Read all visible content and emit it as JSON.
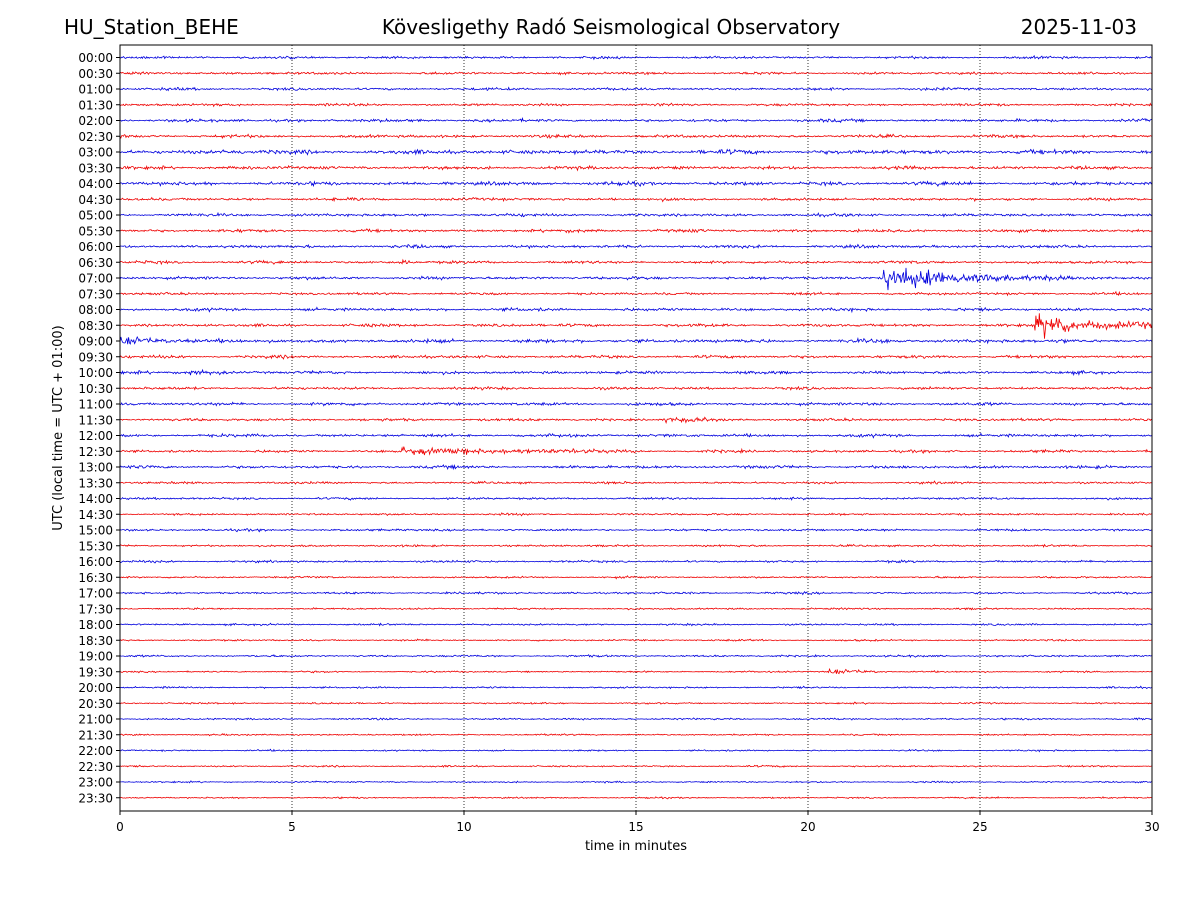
{
  "header": {
    "station": "HU_Station_BEHE",
    "observatory": "Kövesligethy Radó Seismological Observatory",
    "date": "2025-11-03"
  },
  "colors": {
    "even_row": "#0000dd",
    "odd_row": "#ee0000",
    "grid": "#000000",
    "axis": "#000000"
  },
  "chart_data": {
    "type": "line",
    "title": "Kövesligethy Radó Seismological Observatory",
    "xlabel": "time in minutes",
    "ylabel": "UTC (local time = UTC + 01:00)",
    "xlim": [
      0,
      30
    ],
    "x_ticks": [
      "0",
      "5",
      "10",
      "15",
      "20",
      "25",
      "30"
    ],
    "grid": "vertical dotted at x ticks",
    "row_labels": [
      "00:00",
      "00:30",
      "01:00",
      "01:30",
      "02:00",
      "02:30",
      "03:00",
      "03:30",
      "04:00",
      "04:30",
      "05:00",
      "05:30",
      "06:00",
      "06:30",
      "07:00",
      "07:30",
      "08:00",
      "08:30",
      "09:00",
      "09:30",
      "10:00",
      "10:30",
      "11:00",
      "11:30",
      "12:00",
      "12:30",
      "13:00",
      "13:30",
      "14:00",
      "14:30",
      "15:00",
      "15:30",
      "16:00",
      "16:30",
      "17:00",
      "17:30",
      "18:00",
      "18:30",
      "19:00",
      "19:30",
      "20:00",
      "20:30",
      "21:00",
      "21:30",
      "22:00",
      "22:30",
      "23:00",
      "23:30"
    ],
    "row_noise": [
      0.8,
      0.85,
      0.85,
      0.85,
      1.0,
      1.0,
      1.4,
      1.1,
      1.2,
      0.95,
      0.95,
      1.0,
      1.0,
      0.95,
      1.0,
      0.85,
      1.0,
      1.0,
      1.2,
      1.0,
      1.0,
      0.9,
      1.0,
      0.9,
      1.0,
      0.9,
      1.0,
      0.75,
      0.75,
      0.7,
      0.75,
      0.7,
      0.75,
      0.65,
      0.7,
      0.6,
      0.65,
      0.6,
      0.65,
      0.55,
      0.6,
      0.55,
      0.6,
      0.55,
      0.5,
      0.55,
      0.5,
      0.5
    ],
    "events": [
      {
        "row": "07:00",
        "start_min": 22.2,
        "end_min": 27.5,
        "peak_amp": 9,
        "decay_min": 2.2
      },
      {
        "row": "08:30",
        "start_min": 26.6,
        "end_min": 30,
        "peak_amp": 8,
        "decay_min": 1.8
      },
      {
        "row": "12:30",
        "start_min": 8.2,
        "end_min": 15.0,
        "peak_amp": 2.2,
        "decay_min": 5
      },
      {
        "row": "11:30",
        "start_min": 15.8,
        "end_min": 17.5,
        "peak_amp": 2.0,
        "decay_min": 1
      },
      {
        "row": "19:30",
        "start_min": 20.6,
        "end_min": 22.0,
        "peak_amp": 2.2,
        "decay_min": 0.8
      },
      {
        "row": "09:00",
        "start_min": 0.0,
        "end_min": 2.2,
        "peak_amp": 2.4,
        "decay_min": 1.5
      },
      {
        "row": "10:00",
        "start_min": 2.0,
        "end_min": 3.2,
        "peak_amp": 1.8,
        "decay_min": 1
      },
      {
        "row": "03:00",
        "start_min": 3.0,
        "end_min": 3.6,
        "peak_amp": 1.6,
        "decay_min": 0.5
      },
      {
        "row": "06:30",
        "start_min": 8.1,
        "end_min": 8.5,
        "peak_amp": 1.8,
        "decay_min": 0.4
      }
    ]
  }
}
